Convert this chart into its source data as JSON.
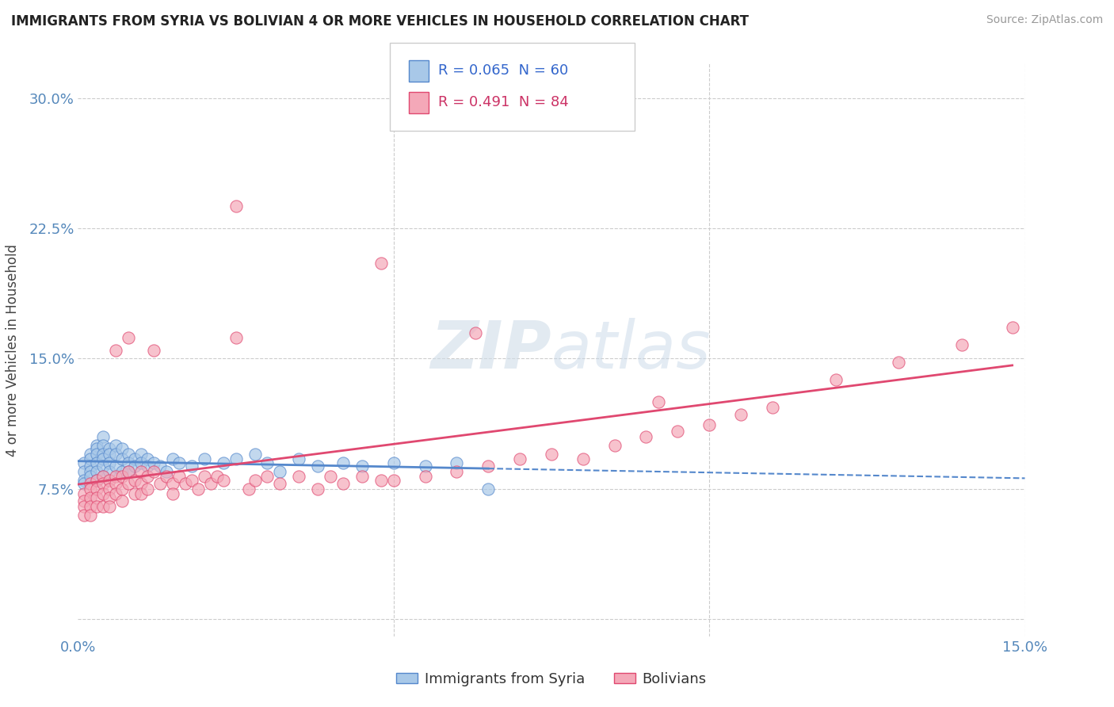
{
  "title": "IMMIGRANTS FROM SYRIA VS BOLIVIAN 4 OR MORE VEHICLES IN HOUSEHOLD CORRELATION CHART",
  "source": "Source: ZipAtlas.com",
  "ylabel": "4 or more Vehicles in Household",
  "xlim": [
    0.0,
    0.15
  ],
  "ylim": [
    -0.01,
    0.32
  ],
  "xticks": [
    0.0,
    0.05,
    0.1,
    0.15
  ],
  "xticklabels": [
    "0.0%",
    "",
    "",
    "15.0%"
  ],
  "yticks": [
    0.0,
    0.075,
    0.15,
    0.225,
    0.3
  ],
  "yticklabels": [
    "",
    "7.5%",
    "15.0%",
    "22.5%",
    "30.0%"
  ],
  "legend1_label": "Immigrants from Syria",
  "legend2_label": "Bolivians",
  "r1": 0.065,
  "n1": 60,
  "r2": 0.491,
  "n2": 84,
  "color_syria": "#a8c8e8",
  "color_bolivia": "#f4a8b8",
  "line_color_syria": "#5588cc",
  "line_color_bolivia": "#e04870",
  "background_color": "#ffffff",
  "grid_color": "#cccccc",
  "syria_x": [
    0.001,
    0.001,
    0.001,
    0.001,
    0.002,
    0.002,
    0.002,
    0.002,
    0.002,
    0.003,
    0.003,
    0.003,
    0.003,
    0.003,
    0.003,
    0.004,
    0.004,
    0.004,
    0.004,
    0.004,
    0.004,
    0.005,
    0.005,
    0.005,
    0.005,
    0.006,
    0.006,
    0.006,
    0.007,
    0.007,
    0.007,
    0.008,
    0.008,
    0.008,
    0.009,
    0.009,
    0.01,
    0.01,
    0.011,
    0.011,
    0.012,
    0.013,
    0.014,
    0.015,
    0.016,
    0.018,
    0.02,
    0.023,
    0.025,
    0.028,
    0.03,
    0.032,
    0.035,
    0.038,
    0.042,
    0.045,
    0.05,
    0.055,
    0.06,
    0.065
  ],
  "syria_y": [
    0.09,
    0.085,
    0.08,
    0.078,
    0.095,
    0.092,
    0.088,
    0.085,
    0.082,
    0.1,
    0.098,
    0.095,
    0.09,
    0.085,
    0.08,
    0.105,
    0.1,
    0.095,
    0.092,
    0.088,
    0.082,
    0.098,
    0.095,
    0.09,
    0.085,
    0.1,
    0.095,
    0.088,
    0.098,
    0.092,
    0.085,
    0.095,
    0.09,
    0.085,
    0.092,
    0.088,
    0.095,
    0.09,
    0.092,
    0.088,
    0.09,
    0.088,
    0.085,
    0.092,
    0.09,
    0.088,
    0.092,
    0.09,
    0.092,
    0.095,
    0.09,
    0.085,
    0.092,
    0.088,
    0.09,
    0.088,
    0.09,
    0.088,
    0.09,
    0.075
  ],
  "bolivia_x": [
    0.001,
    0.001,
    0.001,
    0.001,
    0.002,
    0.002,
    0.002,
    0.002,
    0.002,
    0.003,
    0.003,
    0.003,
    0.003,
    0.004,
    0.004,
    0.004,
    0.004,
    0.005,
    0.005,
    0.005,
    0.005,
    0.006,
    0.006,
    0.006,
    0.006,
    0.007,
    0.007,
    0.007,
    0.008,
    0.008,
    0.008,
    0.009,
    0.009,
    0.01,
    0.01,
    0.01,
    0.011,
    0.011,
    0.012,
    0.012,
    0.013,
    0.014,
    0.015,
    0.015,
    0.016,
    0.017,
    0.018,
    0.019,
    0.02,
    0.021,
    0.022,
    0.023,
    0.025,
    0.027,
    0.028,
    0.03,
    0.032,
    0.035,
    0.038,
    0.04,
    0.042,
    0.045,
    0.048,
    0.05,
    0.055,
    0.06,
    0.065,
    0.07,
    0.075,
    0.08,
    0.085,
    0.09,
    0.095,
    0.1,
    0.105,
    0.11,
    0.12,
    0.13,
    0.14,
    0.148,
    0.025,
    0.048,
    0.063,
    0.092
  ],
  "bolivia_y": [
    0.072,
    0.068,
    0.065,
    0.06,
    0.078,
    0.075,
    0.07,
    0.065,
    0.06,
    0.08,
    0.075,
    0.07,
    0.065,
    0.082,
    0.078,
    0.072,
    0.065,
    0.08,
    0.075,
    0.07,
    0.065,
    0.082,
    0.078,
    0.072,
    0.155,
    0.082,
    0.075,
    0.068,
    0.085,
    0.078,
    0.162,
    0.08,
    0.072,
    0.085,
    0.078,
    0.072,
    0.082,
    0.075,
    0.085,
    0.155,
    0.078,
    0.082,
    0.078,
    0.072,
    0.082,
    0.078,
    0.08,
    0.075,
    0.082,
    0.078,
    0.082,
    0.08,
    0.238,
    0.075,
    0.08,
    0.082,
    0.078,
    0.082,
    0.075,
    0.082,
    0.078,
    0.082,
    0.08,
    0.08,
    0.082,
    0.085,
    0.088,
    0.092,
    0.095,
    0.092,
    0.1,
    0.105,
    0.108,
    0.112,
    0.118,
    0.122,
    0.138,
    0.148,
    0.158,
    0.168,
    0.162,
    0.205,
    0.165,
    0.125
  ]
}
